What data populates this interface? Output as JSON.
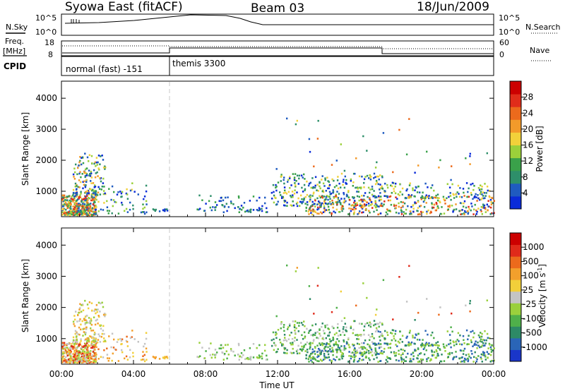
{
  "header": {
    "station": "Syowa East (fitACF)",
    "beam": "Beam 03",
    "date": "18/Jun/2009"
  },
  "top_panels": {
    "nsky_label": "N.Sky",
    "nsky_ticks": [
      "10^5",
      "10^0"
    ],
    "nsearch_label": "N.Search",
    "freq_label_1": "Freq.",
    "freq_label_2": "[MHz]",
    "freq_ticks": [
      "18",
      "8"
    ],
    "nave_label": "Nave",
    "nave_ticks": [
      "60",
      "0"
    ],
    "cpid_label": "CPID",
    "cpid_modes": [
      {
        "name": "normal (fast) -151",
        "start_hour": 0,
        "end_hour": 6
      },
      {
        "name": "themis 3300",
        "start_hour": 6,
        "end_hour": 24
      }
    ]
  },
  "chart_data": [
    {
      "type": "heatmap",
      "panel": "power",
      "ylabel": "Slant Range [km]",
      "xlabel": "Time UT",
      "x_tick_labels": [
        "00:00",
        "04:00",
        "08:00",
        "12:00",
        "16:00",
        "20:00",
        "00:00"
      ],
      "xlim_hours": [
        0,
        24
      ],
      "ylim_km": [
        180,
        4550
      ],
      "y_ticks": [
        1000,
        2000,
        3000,
        4000
      ],
      "colorbar_label": "Power [dB]",
      "colorbar_ticks": [
        "28",
        "24",
        "20",
        "16",
        "12",
        "8",
        "4"
      ],
      "colors": [
        "#0a2bd8",
        "#1f5bc0",
        "#2e8f6a",
        "#3aa14a",
        "#9bd03a",
        "#f2d13a",
        "#f39a2a",
        "#ec6a1c",
        "#e02d1a",
        "#cc0000"
      ],
      "clusters": [
        {
          "t0": 0.0,
          "t1": 1.9,
          "r0": 250,
          "r1": 900,
          "n": 340,
          "cmin": 1,
          "cmax": 8
        },
        {
          "t0": 0.6,
          "t1": 2.4,
          "r0": 900,
          "r1": 2250,
          "n": 150,
          "cmin": 0,
          "cmax": 6
        },
        {
          "t0": 1.8,
          "t1": 4.8,
          "r0": 300,
          "r1": 1300,
          "n": 70,
          "cmin": 0,
          "cmax": 5
        },
        {
          "t0": 5.0,
          "t1": 5.9,
          "r0": 380,
          "r1": 460,
          "n": 14,
          "cmin": 0,
          "cmax": 2
        },
        {
          "t0": 7.5,
          "t1": 11.5,
          "r0": 350,
          "r1": 900,
          "n": 75,
          "cmin": 0,
          "cmax": 3
        },
        {
          "t0": 11.6,
          "t1": 17.8,
          "r0": 550,
          "r1": 1600,
          "n": 300,
          "cmin": 0,
          "cmax": 5
        },
        {
          "t0": 13.5,
          "t1": 24.0,
          "r0": 280,
          "r1": 900,
          "n": 380,
          "cmin": 0,
          "cmax": 8
        },
        {
          "t0": 17.5,
          "t1": 23.8,
          "r0": 800,
          "r1": 1300,
          "n": 130,
          "cmin": 0,
          "cmax": 5
        },
        {
          "t0": 11.0,
          "t1": 23.8,
          "r0": 1300,
          "r1": 3500,
          "n": 40,
          "cmin": 0,
          "cmax": 7
        }
      ]
    },
    {
      "type": "heatmap",
      "panel": "velocity",
      "ylabel": "Slant Range [km]",
      "xlabel": "Time UT",
      "x_tick_labels": [
        "00:00",
        "04:00",
        "08:00",
        "12:00",
        "16:00",
        "20:00",
        "00:00"
      ],
      "xlim_hours": [
        0,
        24
      ],
      "ylim_km": [
        180,
        4550
      ],
      "y_ticks": [
        1000,
        2000,
        3000,
        4000
      ],
      "colorbar_label": "Velocity [m s^-1]",
      "colorbar_ticks": [
        "1000",
        "500",
        "100",
        "25",
        "-25",
        "-100",
        "-500",
        "-1000"
      ],
      "colors": [
        "#1a36c9",
        "#2a65b7",
        "#2d8a66",
        "#4fb04a",
        "#9ad03c",
        "#c4c4c4",
        "#f2cf3a",
        "#f3a02c",
        "#ec6a1c",
        "#e02a1a",
        "#cc0000"
      ],
      "clusters": [
        {
          "t0": 0.0,
          "t1": 1.9,
          "r0": 250,
          "r1": 900,
          "n": 340,
          "cmin": 4,
          "cmax": 9
        },
        {
          "t0": 0.6,
          "t1": 2.4,
          "r0": 900,
          "r1": 2250,
          "n": 150,
          "cmin": 4,
          "cmax": 7
        },
        {
          "t0": 1.8,
          "t1": 4.8,
          "r0": 300,
          "r1": 1300,
          "n": 70,
          "cmin": 5,
          "cmax": 8
        },
        {
          "t0": 5.0,
          "t1": 5.9,
          "r0": 380,
          "r1": 460,
          "n": 14,
          "cmin": 6,
          "cmax": 7
        },
        {
          "t0": 7.5,
          "t1": 11.5,
          "r0": 350,
          "r1": 900,
          "n": 75,
          "cmin": 3,
          "cmax": 5
        },
        {
          "t0": 11.6,
          "t1": 17.8,
          "r0": 550,
          "r1": 1600,
          "n": 300,
          "cmin": 2,
          "cmax": 5
        },
        {
          "t0": 13.5,
          "t1": 24.0,
          "r0": 280,
          "r1": 900,
          "n": 380,
          "cmin": 1,
          "cmax": 4
        },
        {
          "t0": 17.5,
          "t1": 23.8,
          "r0": 800,
          "r1": 1300,
          "n": 130,
          "cmin": 1,
          "cmax": 4
        },
        {
          "t0": 11.0,
          "t1": 23.8,
          "r0": 1300,
          "r1": 3500,
          "n": 40,
          "cmin": 2,
          "cmax": 9
        }
      ]
    }
  ]
}
